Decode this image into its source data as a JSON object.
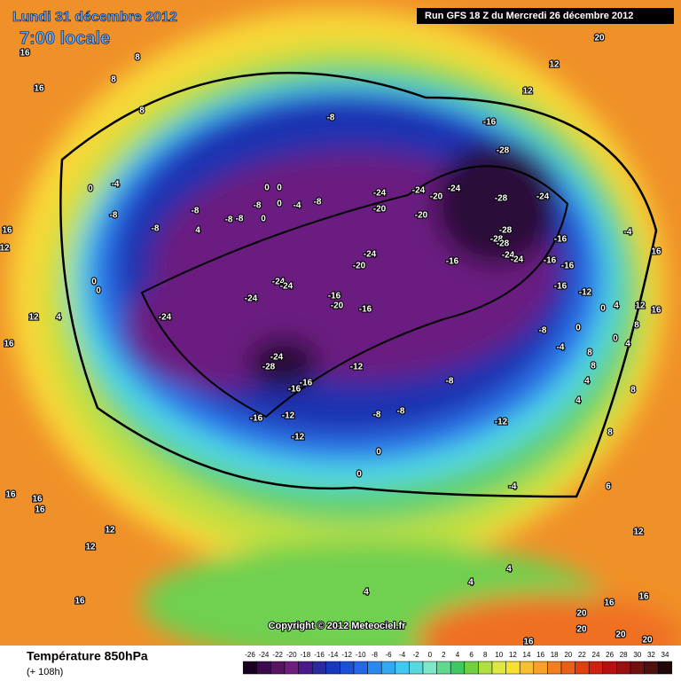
{
  "header": {
    "date": "Lundi 31 décembre 2012",
    "time": "7:00 locale",
    "run": "Run GFS 18 Z du Mercredi 26 décembre 2012"
  },
  "copyright": "Copyright © 2012 Meteociel.fr",
  "footer": {
    "title": "Température 850hPa",
    "lead": "(+ 108h)"
  },
  "scale": {
    "ticks": [
      -26,
      -24,
      -22,
      -20,
      -18,
      -16,
      -14,
      -12,
      -10,
      -8,
      -6,
      -4,
      -2,
      0,
      2,
      4,
      6,
      8,
      10,
      12,
      14,
      16,
      18,
      20,
      22,
      24,
      26,
      28,
      30,
      32,
      34
    ],
    "colors": [
      "#1a0020",
      "#3a0a4a",
      "#561463",
      "#6e1f7e",
      "#4a1a8a",
      "#2a2aa0",
      "#1838c0",
      "#1a50d8",
      "#2468e8",
      "#2a88f0",
      "#35a8f0",
      "#40c8f0",
      "#5ad8e0",
      "#7ee8c8",
      "#60d890",
      "#40c860",
      "#70d040",
      "#b0e040",
      "#e0e840",
      "#f8e030",
      "#f8c030",
      "#f8a028",
      "#f08020",
      "#e86018",
      "#e04010",
      "#d02010",
      "#b81010",
      "#981010",
      "#701010",
      "#501010",
      "#200808"
    ]
  },
  "contour_labels": [
    16,
    16,
    8,
    8,
    8,
    12,
    12,
    20,
    -8,
    -16,
    -28,
    -24,
    -24,
    -20,
    -24,
    -28,
    -24,
    -20,
    -20,
    -28,
    -28,
    -28,
    -24,
    -24,
    -16,
    -16,
    -16,
    -16,
    -12,
    -24,
    -20,
    -16,
    -24,
    -24,
    -24,
    -16,
    -20,
    -16,
    -24,
    -24,
    -28,
    -16,
    -16,
    -12,
    -8,
    -8,
    -16,
    -12,
    -12,
    -8,
    -8,
    -12,
    -4,
    0,
    0,
    0,
    -4,
    -8,
    -8,
    -8,
    4,
    -8,
    -8,
    -8,
    0,
    0,
    0,
    -4,
    -8,
    0,
    16,
    12,
    0,
    0,
    12,
    4,
    16,
    -4,
    16,
    16,
    12,
    8,
    4,
    0,
    0,
    0,
    4,
    -4,
    8,
    8,
    4,
    8,
    4,
    8,
    6,
    12,
    12,
    12,
    16,
    16,
    16,
    16,
    4,
    4,
    4,
    16,
    20,
    20,
    20,
    20,
    16,
    16
  ]
}
